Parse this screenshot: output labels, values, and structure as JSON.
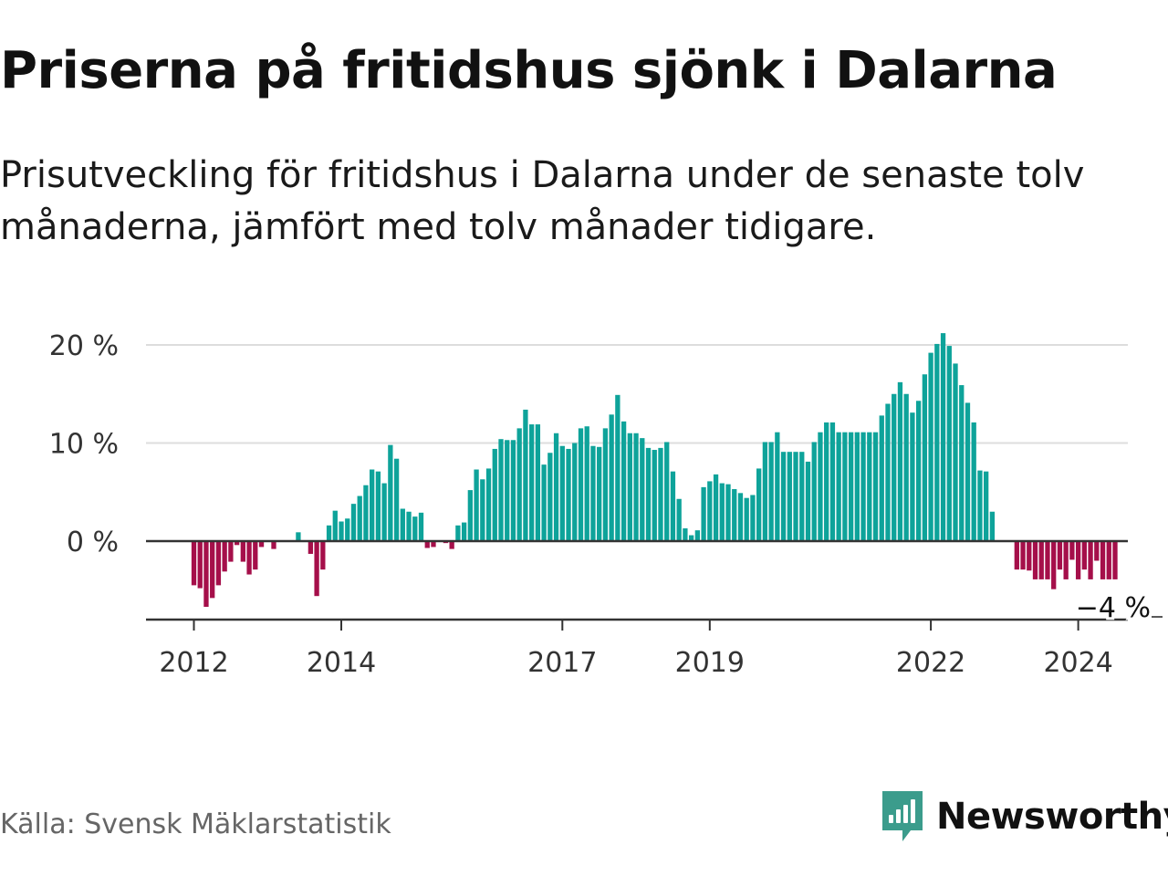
{
  "title": "Priserna på fritidshus sjönk i Dalarna",
  "subtitle": "Prisutveckling för fritidshus i Dalarna under de senaste tolv månaderna, jämfört med tolv månader tidigare.",
  "source": "Källa: Svensk Mäklarstatistik",
  "brand": {
    "name": "Newsworthy",
    "icon": "newsworthy-logo-icon",
    "color": "#3b9c8c"
  },
  "colors": {
    "positive": "#0ea39a",
    "negative": "#a50f4a",
    "gridline": "#dddddd",
    "axis": "#333333"
  },
  "chart_data": {
    "type": "bar",
    "title": "Priserna på fritidshus sjönk i Dalarna",
    "xlabel": "",
    "ylabel": "",
    "ylim": [
      -8,
      22
    ],
    "yticks": [
      {
        "value": 0,
        "label": "0 %"
      },
      {
        "value": 10,
        "label": "10 %"
      },
      {
        "value": 20,
        "label": "20 %"
      }
    ],
    "xticks": [
      {
        "index": 0,
        "label": "2012"
      },
      {
        "index": 24,
        "label": "2014"
      },
      {
        "index": 60,
        "label": "2017"
      },
      {
        "index": 84,
        "label": "2019"
      },
      {
        "index": 120,
        "label": "2022"
      },
      {
        "index": 144,
        "label": "2024"
      }
    ],
    "last_value_label": "−4 %",
    "grid": true,
    "series": [
      {
        "name": "Prisutveckling",
        "start": "2011-12",
        "frequency": "monthly",
        "values": [
          -4.5,
          -4.8,
          -6.7,
          -5.8,
          -4.5,
          -3.1,
          -2.1,
          -0.4,
          -2.1,
          -3.4,
          -2.9,
          -0.6,
          0,
          -0.8,
          0,
          0,
          0,
          0.9,
          0,
          -1.3,
          -5.6,
          -2.9,
          1.6,
          3.1,
          2.0,
          2.3,
          3.8,
          4.6,
          5.7,
          7.3,
          7.1,
          5.9,
          9.8,
          8.4,
          3.3,
          3.0,
          2.5,
          2.9,
          -0.7,
          -0.6,
          0,
          -0.2,
          -0.8,
          1.6,
          1.9,
          5.2,
          7.3,
          6.3,
          7.4,
          9.4,
          10.4,
          10.3,
          10.3,
          11.5,
          13.4,
          11.9,
          11.9,
          7.8,
          9.0,
          11.0,
          9.7,
          9.4,
          10.0,
          11.5,
          11.7,
          9.7,
          9.6,
          11.5,
          12.9,
          14.9,
          12.2,
          11.0,
          11.0,
          10.5,
          9.5,
          9.3,
          9.5,
          10.1,
          7.1,
          4.3,
          1.3,
          0.6,
          1.1,
          5.5,
          6.1,
          6.8,
          5.9,
          5.8,
          5.3,
          4.9,
          4.4,
          4.7,
          7.4,
          10.1,
          10.1,
          11.1,
          9.1,
          9.1,
          9.1,
          9.1,
          8.1,
          10.1,
          11.1,
          12.1,
          12.1,
          11.1,
          11.1,
          11.1,
          11.1,
          11.1,
          11.1,
          11.1,
          12.8,
          14.0,
          15.0,
          16.2,
          15.0,
          13.1,
          14.3,
          17.0,
          19.2,
          20.1,
          21.2,
          19.9,
          18.1,
          15.9,
          14.1,
          12.1,
          7.2,
          7.1,
          3.0,
          0,
          0,
          0,
          -2.9,
          -2.9,
          -3.0,
          -3.9,
          -3.9,
          -3.9,
          -4.9,
          -2.9,
          -3.9,
          -1.9,
          -3.9,
          -2.9,
          -3.9,
          -2.0,
          -3.9,
          -3.9,
          -3.9
        ]
      }
    ]
  }
}
